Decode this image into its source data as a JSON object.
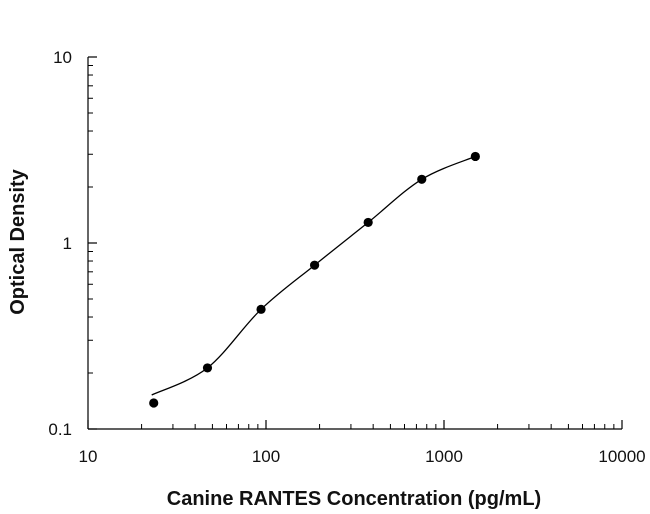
{
  "chart_data": {
    "type": "scatter",
    "title": "",
    "xlabel": "Canine RANTES Concentration (pg/mL)",
    "ylabel": "Optical Density",
    "xscale": "log",
    "yscale": "log",
    "xlim": [
      10,
      10000
    ],
    "ylim": [
      0.1,
      10
    ],
    "x_ticks": [
      10,
      100,
      1000,
      10000
    ],
    "x_tick_labels": [
      "10",
      "100",
      "1000",
      "10000"
    ],
    "y_ticks": [
      0.1,
      1,
      10
    ],
    "y_tick_labels": [
      "0.1",
      "1",
      "10"
    ],
    "grid": false,
    "legend": "none",
    "series": [
      {
        "points": [
          {
            "x": 23.4,
            "y": 0.138
          },
          {
            "x": 46.9,
            "y": 0.213
          },
          {
            "x": 93.8,
            "y": 0.44
          },
          {
            "x": 187.5,
            "y": 0.76
          },
          {
            "x": 375,
            "y": 1.29
          },
          {
            "x": 750,
            "y": 2.2
          },
          {
            "x": 1500,
            "y": 2.92
          }
        ],
        "curve": "4PL fit",
        "color": "#000000"
      }
    ]
  }
}
